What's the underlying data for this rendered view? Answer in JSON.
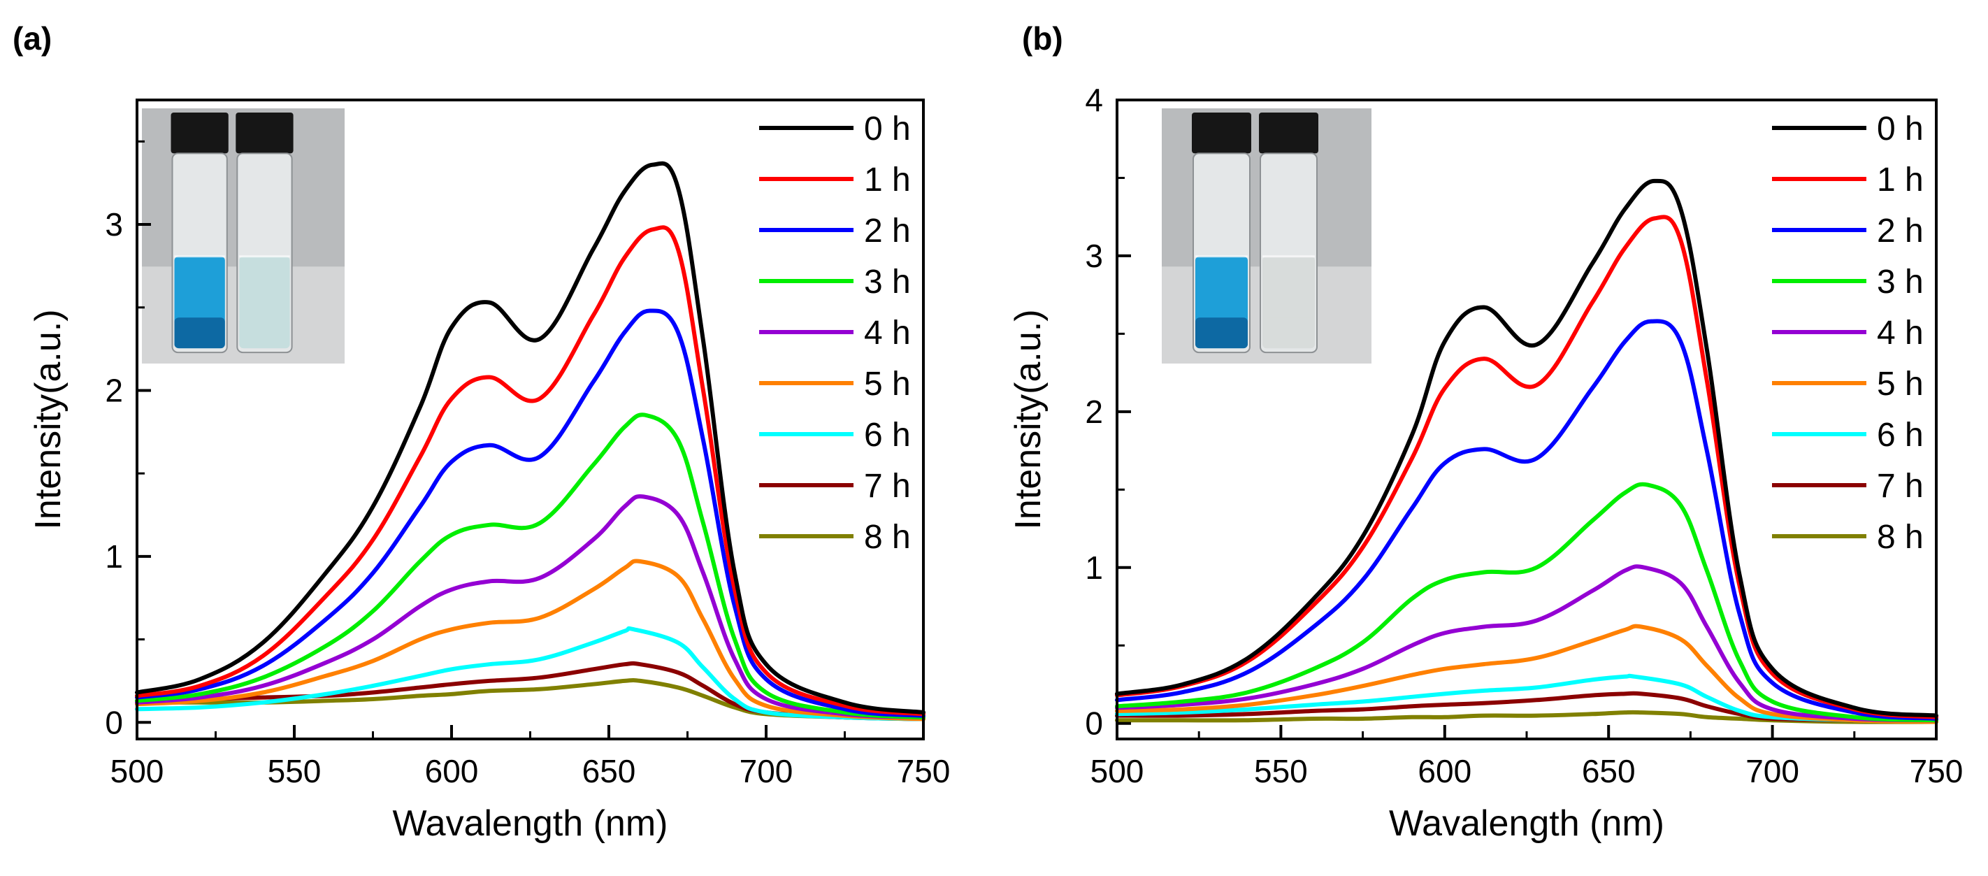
{
  "chart_data": [
    {
      "panel_label": "(a)",
      "type": "line",
      "xlabel": "Wavalength (nm)",
      "ylabel": "Intensity(a.u.)",
      "xlim": [
        500,
        750
      ],
      "ylim": [
        -0.1,
        3.75
      ],
      "x_ticks": [
        500,
        550,
        600,
        650,
        700,
        750
      ],
      "y_ticks": [
        0,
        1,
        2,
        3
      ],
      "legend_position": "top-right",
      "inset": "photo of two vials: blue dye solution (left) and faded clear solution (right)",
      "series": [
        {
          "name": "0 h",
          "color": "#000000",
          "x": [
            500,
            520,
            540,
            560,
            575,
            590,
            600,
            612,
            628,
            645,
            655,
            664,
            672,
            680,
            690,
            700,
            725,
            750
          ],
          "y": [
            0.18,
            0.26,
            0.48,
            0.9,
            1.3,
            1.9,
            2.38,
            2.53,
            2.31,
            2.85,
            3.2,
            3.36,
            3.22,
            2.3,
            0.9,
            0.35,
            0.12,
            0.06
          ]
        },
        {
          "name": "1 h",
          "color": "#ff0000",
          "x": [
            500,
            520,
            540,
            560,
            575,
            590,
            600,
            612,
            628,
            645,
            655,
            664,
            672,
            680,
            690,
            700,
            725,
            750
          ],
          "y": [
            0.16,
            0.22,
            0.4,
            0.76,
            1.1,
            1.6,
            1.95,
            2.08,
            1.95,
            2.45,
            2.8,
            2.97,
            2.85,
            2.0,
            0.8,
            0.3,
            0.1,
            0.05
          ]
        },
        {
          "name": "2 h",
          "color": "#0000ff",
          "x": [
            500,
            520,
            540,
            560,
            575,
            590,
            600,
            612,
            628,
            645,
            655,
            663,
            672,
            680,
            690,
            700,
            725,
            750
          ],
          "y": [
            0.15,
            0.2,
            0.34,
            0.62,
            0.9,
            1.3,
            1.57,
            1.67,
            1.6,
            2.05,
            2.35,
            2.48,
            2.35,
            1.7,
            0.7,
            0.26,
            0.08,
            0.04
          ]
        },
        {
          "name": "3 h",
          "color": "#00ee00",
          "x": [
            500,
            520,
            540,
            560,
            575,
            590,
            600,
            612,
            628,
            645,
            655,
            662,
            672,
            680,
            690,
            700,
            725,
            750
          ],
          "y": [
            0.13,
            0.17,
            0.27,
            0.46,
            0.67,
            0.97,
            1.13,
            1.19,
            1.2,
            1.55,
            1.78,
            1.85,
            1.7,
            1.2,
            0.5,
            0.18,
            0.06,
            0.03
          ]
        },
        {
          "name": "4 h",
          "color": "#9400d3",
          "x": [
            500,
            520,
            540,
            560,
            575,
            590,
            600,
            612,
            628,
            645,
            655,
            661,
            672,
            680,
            690,
            700,
            725,
            750
          ],
          "y": [
            0.12,
            0.15,
            0.22,
            0.36,
            0.5,
            0.7,
            0.8,
            0.85,
            0.87,
            1.1,
            1.3,
            1.36,
            1.25,
            0.9,
            0.38,
            0.14,
            0.05,
            0.03
          ]
        },
        {
          "name": "5 h",
          "color": "#ff8000",
          "x": [
            500,
            520,
            540,
            560,
            575,
            590,
            600,
            612,
            628,
            645,
            655,
            660,
            672,
            680,
            690,
            700,
            725,
            750
          ],
          "y": [
            0.11,
            0.13,
            0.18,
            0.28,
            0.37,
            0.5,
            0.56,
            0.6,
            0.63,
            0.8,
            0.93,
            0.97,
            0.88,
            0.62,
            0.26,
            0.1,
            0.04,
            0.02
          ]
        },
        {
          "name": "6 h",
          "color": "#00ffff",
          "x": [
            500,
            520,
            540,
            560,
            575,
            590,
            600,
            612,
            628,
            645,
            655,
            658,
            672,
            680,
            690,
            700,
            725,
            750
          ],
          "y": [
            0.08,
            0.09,
            0.12,
            0.17,
            0.22,
            0.28,
            0.32,
            0.35,
            0.38,
            0.48,
            0.55,
            0.56,
            0.48,
            0.33,
            0.14,
            0.06,
            0.03,
            0.02
          ]
        },
        {
          "name": "7 h",
          "color": "#8b0000",
          "x": [
            500,
            520,
            540,
            560,
            575,
            590,
            600,
            612,
            628,
            645,
            655,
            660,
            672,
            680,
            690,
            700,
            725,
            750
          ],
          "y": [
            0.13,
            0.14,
            0.15,
            0.16,
            0.18,
            0.21,
            0.23,
            0.25,
            0.27,
            0.32,
            0.35,
            0.35,
            0.3,
            0.22,
            0.11,
            0.06,
            0.03,
            0.02
          ]
        },
        {
          "name": "8 h",
          "color": "#808000",
          "x": [
            500,
            520,
            540,
            560,
            575,
            590,
            600,
            612,
            628,
            645,
            655,
            660,
            672,
            680,
            690,
            700,
            725,
            750
          ],
          "y": [
            0.12,
            0.12,
            0.12,
            0.13,
            0.14,
            0.16,
            0.17,
            0.19,
            0.2,
            0.23,
            0.25,
            0.25,
            0.21,
            0.16,
            0.09,
            0.05,
            0.03,
            0.02
          ]
        }
      ]
    },
    {
      "panel_label": "(b)",
      "type": "line",
      "xlabel": "Wavalength (nm)",
      "ylabel": "Intensity(a.u.)",
      "xlim": [
        500,
        750
      ],
      "ylim": [
        -0.1,
        4.0
      ],
      "x_ticks": [
        500,
        550,
        600,
        650,
        700,
        750
      ],
      "y_ticks": [
        0,
        1,
        2,
        3,
        4
      ],
      "legend_position": "top-right",
      "inset": "photo of two vials: blue dye solution (left) and clear degraded solution (right)",
      "series": [
        {
          "name": "0 h",
          "color": "#000000",
          "x": [
            500,
            520,
            540,
            560,
            575,
            590,
            600,
            612,
            628,
            645,
            655,
            664,
            672,
            680,
            690,
            700,
            725,
            750
          ],
          "y": [
            0.19,
            0.25,
            0.42,
            0.8,
            1.2,
            1.85,
            2.45,
            2.67,
            2.43,
            2.95,
            3.3,
            3.48,
            3.3,
            2.4,
            0.95,
            0.35,
            0.1,
            0.05
          ]
        },
        {
          "name": "1 h",
          "color": "#ff0000",
          "x": [
            500,
            520,
            540,
            560,
            575,
            590,
            600,
            612,
            628,
            645,
            655,
            664,
            672,
            680,
            690,
            700,
            725,
            750
          ],
          "y": [
            0.18,
            0.24,
            0.4,
            0.76,
            1.13,
            1.7,
            2.15,
            2.34,
            2.17,
            2.7,
            3.05,
            3.24,
            3.1,
            2.2,
            0.88,
            0.32,
            0.09,
            0.04
          ]
        },
        {
          "name": "2 h",
          "color": "#0000ff",
          "x": [
            500,
            520,
            540,
            560,
            575,
            590,
            600,
            612,
            628,
            645,
            655,
            663,
            672,
            680,
            690,
            700,
            725,
            750
          ],
          "y": [
            0.15,
            0.2,
            0.33,
            0.62,
            0.92,
            1.38,
            1.67,
            1.76,
            1.7,
            2.15,
            2.45,
            2.58,
            2.45,
            1.75,
            0.7,
            0.26,
            0.07,
            0.03
          ]
        },
        {
          "name": "3 h",
          "color": "#00ee00",
          "x": [
            500,
            520,
            540,
            560,
            575,
            590,
            600,
            612,
            628,
            645,
            655,
            662,
            672,
            680,
            690,
            700,
            725,
            750
          ],
          "y": [
            0.11,
            0.14,
            0.2,
            0.35,
            0.52,
            0.8,
            0.92,
            0.97,
            1.0,
            1.3,
            1.48,
            1.53,
            1.4,
            0.98,
            0.4,
            0.14,
            0.04,
            0.02
          ]
        },
        {
          "name": "4 h",
          "color": "#9400d3",
          "x": [
            500,
            520,
            540,
            560,
            575,
            590,
            600,
            612,
            628,
            645,
            655,
            661,
            672,
            680,
            690,
            700,
            725,
            750
          ],
          "y": [
            0.1,
            0.12,
            0.16,
            0.25,
            0.35,
            0.5,
            0.58,
            0.62,
            0.66,
            0.85,
            0.98,
            1.0,
            0.9,
            0.62,
            0.26,
            0.09,
            0.03,
            0.02
          ]
        },
        {
          "name": "5 h",
          "color": "#ff8000",
          "x": [
            500,
            520,
            540,
            560,
            575,
            590,
            600,
            612,
            628,
            645,
            655,
            660,
            672,
            680,
            690,
            700,
            725,
            750
          ],
          "y": [
            0.08,
            0.09,
            0.12,
            0.18,
            0.24,
            0.31,
            0.35,
            0.38,
            0.42,
            0.53,
            0.6,
            0.62,
            0.54,
            0.37,
            0.16,
            0.06,
            0.02,
            0.01
          ]
        },
        {
          "name": "6 h",
          "color": "#00ffff",
          "x": [
            500,
            520,
            540,
            560,
            575,
            590,
            600,
            612,
            628,
            645,
            655,
            658,
            672,
            680,
            690,
            700,
            725,
            750
          ],
          "y": [
            0.06,
            0.07,
            0.09,
            0.12,
            0.14,
            0.17,
            0.19,
            0.21,
            0.23,
            0.28,
            0.3,
            0.3,
            0.25,
            0.17,
            0.08,
            0.04,
            0.02,
            0.01
          ]
        },
        {
          "name": "7 h",
          "color": "#8b0000",
          "x": [
            500,
            520,
            540,
            560,
            575,
            590,
            600,
            612,
            628,
            645,
            655,
            660,
            672,
            680,
            690,
            700,
            725,
            750
          ],
          "y": [
            0.05,
            0.05,
            0.06,
            0.08,
            0.09,
            0.11,
            0.12,
            0.13,
            0.15,
            0.18,
            0.19,
            0.19,
            0.16,
            0.11,
            0.06,
            0.03,
            0.02,
            0.01
          ]
        },
        {
          "name": "8 h",
          "color": "#808000",
          "x": [
            500,
            520,
            540,
            560,
            575,
            590,
            600,
            612,
            628,
            645,
            655,
            660,
            672,
            680,
            690,
            700,
            725,
            750
          ],
          "y": [
            0.02,
            0.02,
            0.02,
            0.03,
            0.03,
            0.04,
            0.04,
            0.05,
            0.05,
            0.06,
            0.07,
            0.07,
            0.06,
            0.04,
            0.03,
            0.02,
            0.01,
            0.01
          ]
        }
      ]
    }
  ]
}
